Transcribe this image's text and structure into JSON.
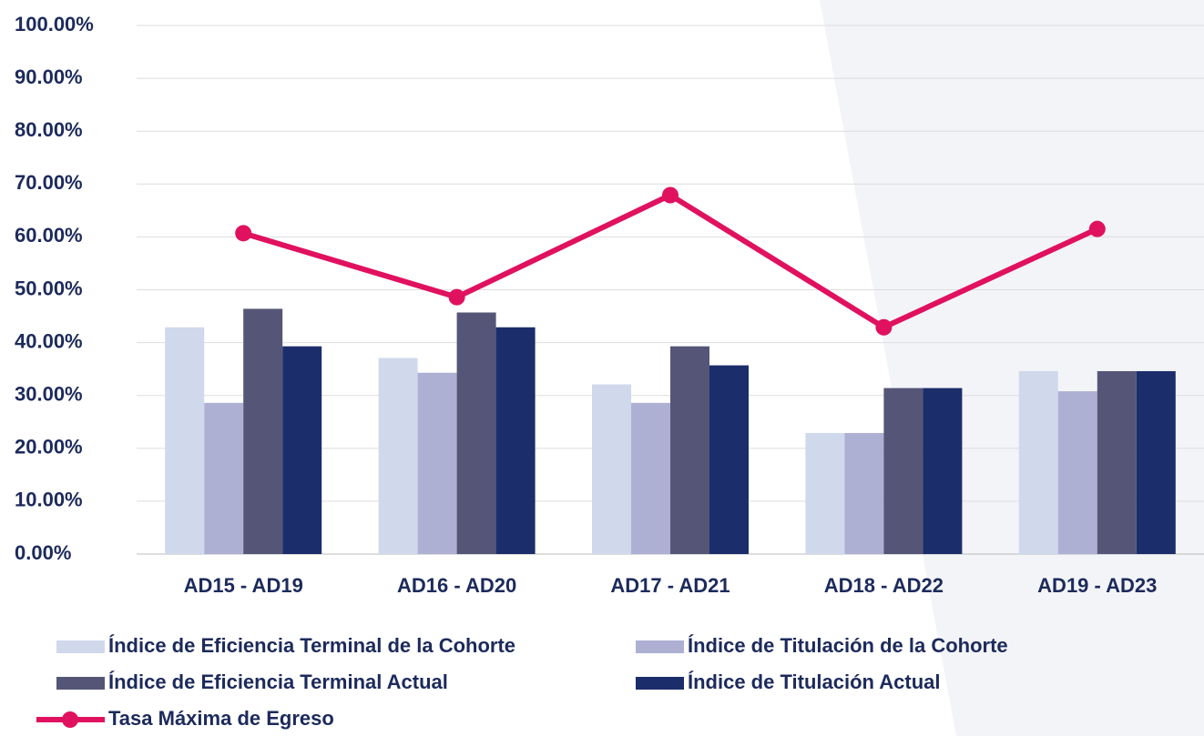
{
  "chart_data": {
    "type": "bar",
    "categories": [
      "AD15 - AD19",
      "AD16 - AD20",
      "AD17 - AD21",
      "AD18 - AD22",
      "AD19 - AD23"
    ],
    "series": [
      {
        "name": "Índice de Eficiencia Terminal de la Cohorte",
        "color": "#d0d8ec",
        "values": [
          42.9,
          37.1,
          32.1,
          22.9,
          34.6
        ]
      },
      {
        "name": "Índice de Titulación de la Cohorte",
        "color": "#adb0d3",
        "values": [
          28.6,
          34.3,
          28.6,
          22.9,
          30.8
        ]
      },
      {
        "name": "Índice de Eficiencia Terminal Actual",
        "color": "#555577",
        "values": [
          46.4,
          45.7,
          39.3,
          31.4,
          34.6
        ]
      },
      {
        "name": "Índice de Titulación Actual",
        "color": "#1b2d6b",
        "values": [
          39.3,
          42.9,
          35.7,
          31.4,
          34.6
        ]
      },
      {
        "name": "Tasa Máxima de Egreso",
        "color": "#e0115f",
        "type": "line",
        "values": [
          60.7,
          48.6,
          67.9,
          42.9,
          61.5
        ]
      }
    ],
    "ylim": [
      0,
      100
    ],
    "yticks": [
      {
        "value": 0,
        "label": "0.00%"
      },
      {
        "value": 10,
        "label": "10.00%"
      },
      {
        "value": 20,
        "label": "20.00%"
      },
      {
        "value": 30,
        "label": "30.00%"
      },
      {
        "value": 40,
        "label": "40.00%"
      },
      {
        "value": 50,
        "label": "50.00%"
      },
      {
        "value": 60,
        "label": "60.00%"
      },
      {
        "value": 70,
        "label": "70.00%"
      },
      {
        "value": 80,
        "label": "80.00%"
      },
      {
        "value": 90,
        "label": "90.00%"
      },
      {
        "value": 100,
        "label": "100.00%"
      }
    ],
    "grid": true,
    "legend": "bottom"
  }
}
